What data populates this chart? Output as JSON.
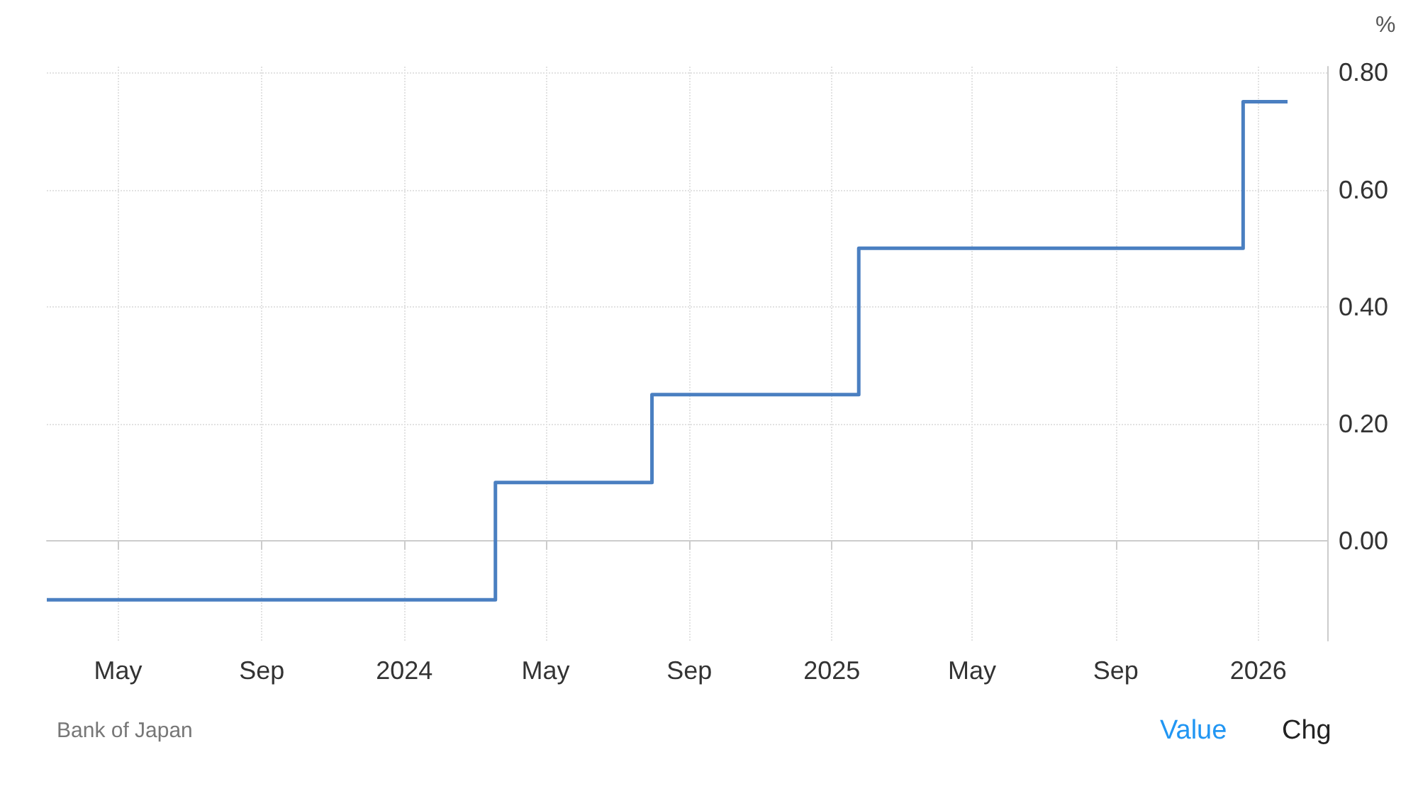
{
  "chart_data": {
    "type": "step",
    "ylabel": "%",
    "x": [
      "2023-03-01",
      "2024-03-19",
      "2024-07-31",
      "2025-01-24",
      "2025-12-19",
      "2026-01-26"
    ],
    "series": [
      {
        "color": "#4a7fc1",
        "values": [
          -0.1,
          0.1,
          0.25,
          0.5,
          0.75,
          0.75
        ]
      }
    ],
    "xlim": [
      "2023-03-01",
      "2026-03-01"
    ],
    "xticks": [
      {
        "value": "2023-05-01",
        "label": "May"
      },
      {
        "value": "2023-09-01",
        "label": "Sep"
      },
      {
        "value": "2024-01-01",
        "label": "2024"
      },
      {
        "value": "2024-05-01",
        "label": "May"
      },
      {
        "value": "2024-09-01",
        "label": "Sep"
      },
      {
        "value": "2025-01-01",
        "label": "2025"
      },
      {
        "value": "2025-05-01",
        "label": "May"
      },
      {
        "value": "2025-09-01",
        "label": "Sep"
      },
      {
        "value": "2026-01-01",
        "label": "2026"
      }
    ],
    "ylim": [
      -0.17,
      0.81
    ],
    "yticks": [
      {
        "value": 0,
        "label": "0.00"
      },
      {
        "value": 0.2,
        "label": "0.20"
      },
      {
        "value": 0.4,
        "label": "0.40"
      },
      {
        "value": 0.6,
        "label": "0.60"
      },
      {
        "value": 0.8,
        "label": "0.80"
      }
    ],
    "grid": true,
    "line_style": "solid",
    "marker": "none",
    "annotations": [
      "Bank of Japan",
      "Value",
      "Chg"
    ]
  }
}
